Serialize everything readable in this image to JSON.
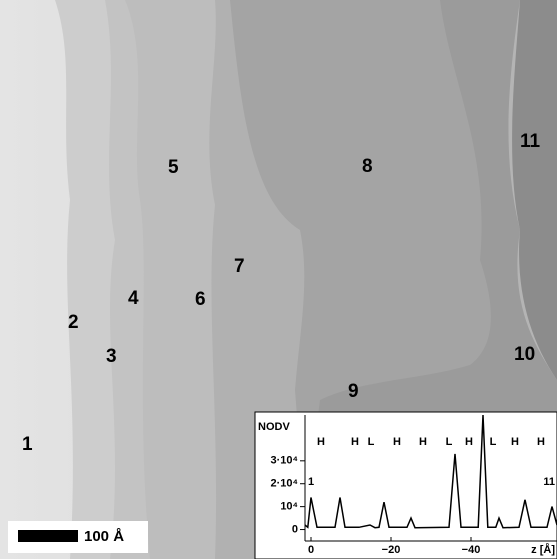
{
  "image": {
    "labels": [
      "1",
      "2",
      "3",
      "4",
      "5",
      "6",
      "7",
      "8",
      "9",
      "10",
      "11"
    ],
    "scale_bar": "100 Å"
  },
  "chart_data": {
    "type": "line",
    "y_label": "NODV",
    "x_label": "z [Å]",
    "xlim": [
      1.5,
      -61.5
    ],
    "xticks": [
      {
        "value": 0,
        "label": "0"
      },
      {
        "value": -20,
        "label": "−20"
      },
      {
        "value": -40,
        "label": "−40"
      }
    ],
    "ylim": [
      -5000,
      50000
    ],
    "yticks": [
      {
        "value": 0,
        "label": "0"
      },
      {
        "value": 10000,
        "label": "10⁴"
      },
      {
        "value": 20000,
        "label": "2·10⁴"
      },
      {
        "value": 30000,
        "label": "3·10⁴"
      }
    ],
    "end_labels": [
      "1",
      "11"
    ],
    "peak_labels": [
      {
        "text": "H",
        "x": -2.5
      },
      {
        "text": "H",
        "x": -11
      },
      {
        "text": "L",
        "x": -15
      },
      {
        "text": "H",
        "x": -21.5
      },
      {
        "text": "H",
        "x": -28
      },
      {
        "text": "L",
        "x": -34.5
      },
      {
        "text": "H",
        "x": -39.5
      },
      {
        "text": "L",
        "x": -45.5
      },
      {
        "text": "H",
        "x": -51
      },
      {
        "text": "H",
        "x": -57.5
      }
    ],
    "series": [
      {
        "color": "#000000",
        "x": [
          1.5,
          0.8,
          0,
          -1.5,
          -3,
          -6,
          -7.25,
          -8.5,
          -12,
          -14.75,
          -16,
          -17,
          -18.25,
          -19.5,
          -24,
          -25,
          -26,
          -34.5,
          -36,
          -37.5,
          -41.8,
          -43,
          -44.2,
          -46.2,
          -47,
          -48,
          -52,
          -53.5,
          -55,
          -59,
          -60.25,
          -61.5
        ],
        "values": [
          2000,
          1000,
          14000,
          1000,
          1000,
          1000,
          14000,
          1000,
          1000,
          2000,
          800,
          1000,
          12000,
          1000,
          1000,
          5000,
          800,
          1000,
          33000,
          1000,
          1000,
          50000,
          1000,
          1000,
          5000,
          800,
          1000,
          13000,
          1000,
          1000,
          10000,
          2000
        ]
      }
    ]
  }
}
